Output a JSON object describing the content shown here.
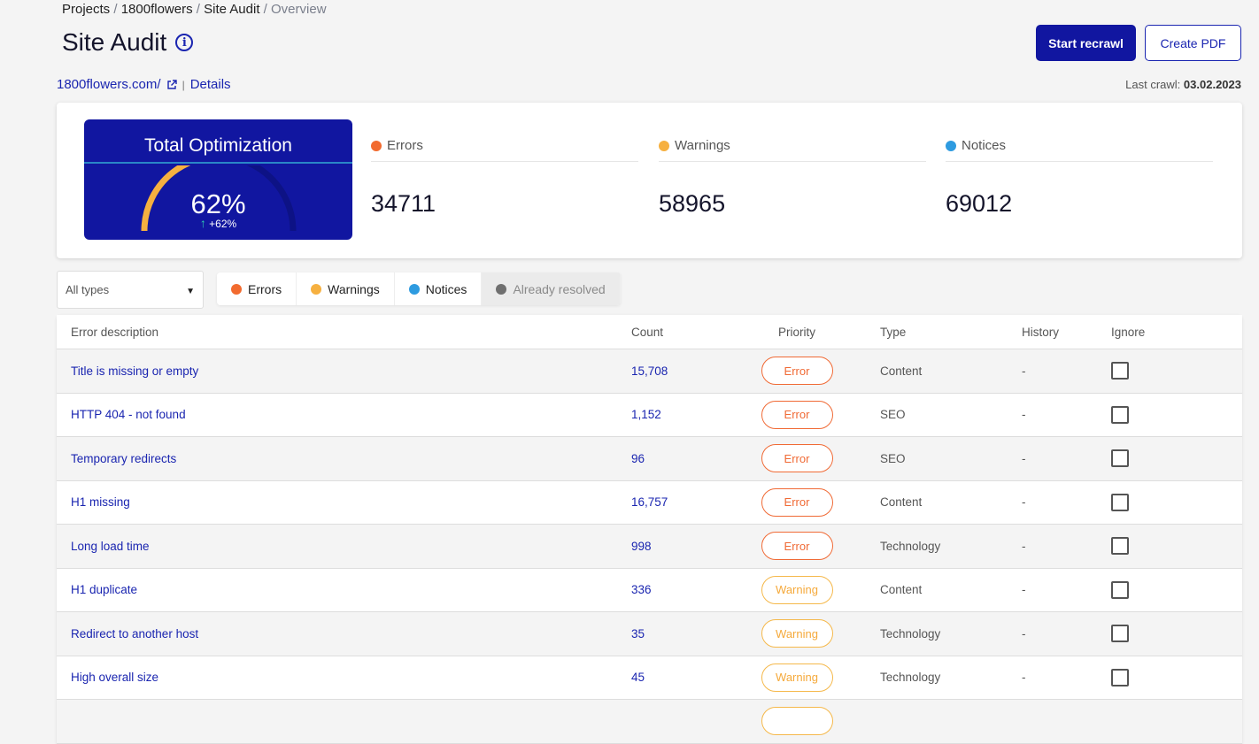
{
  "breadcrumb": [
    "Projects",
    "1800flowers",
    "Site Audit",
    "Overview"
  ],
  "title": "Site Audit",
  "site": {
    "url": "1800flowers.com/",
    "details": "Details"
  },
  "buttons": {
    "recrawl": "Start recrawl",
    "pdf": "Create PDF"
  },
  "last_crawl": {
    "label": "Last crawl:",
    "date": "03.02.2023"
  },
  "optimization": {
    "title": "Total Optimization",
    "value": "62%",
    "delta": "+62%",
    "fraction": 0.62
  },
  "stats": [
    {
      "label": "Errors",
      "value": "34711",
      "color": "#f26b2f"
    },
    {
      "label": "Warnings",
      "value": "58965",
      "color": "#f6b040"
    },
    {
      "label": "Notices",
      "value": "69012",
      "color": "#2e9be0"
    }
  ],
  "filter": {
    "select": "All types",
    "tabs": [
      {
        "label": "Errors",
        "color": "#f26b2f"
      },
      {
        "label": "Warnings",
        "color": "#f6b040"
      },
      {
        "label": "Notices",
        "color": "#2e9be0"
      },
      {
        "label": "Already resolved",
        "color": "#6f6f6f"
      }
    ]
  },
  "table": {
    "headers": [
      "Error description",
      "Count",
      "Priority",
      "Type",
      "History",
      "Ignore"
    ],
    "rows": [
      {
        "desc": "Title is missing or empty",
        "count": "15,708",
        "priority": "Error",
        "type": "Content",
        "history": "-"
      },
      {
        "desc": "HTTP 404 - not found",
        "count": "1,152",
        "priority": "Error",
        "type": "SEO",
        "history": "-"
      },
      {
        "desc": "Temporary redirects",
        "count": "96",
        "priority": "Error",
        "type": "SEO",
        "history": "-"
      },
      {
        "desc": "H1 missing",
        "count": "16,757",
        "priority": "Error",
        "type": "Content",
        "history": "-"
      },
      {
        "desc": "Long load time",
        "count": "998",
        "priority": "Error",
        "type": "Technology",
        "history": "-"
      },
      {
        "desc": "H1 duplicate",
        "count": "336",
        "priority": "Warning",
        "type": "Content",
        "history": "-"
      },
      {
        "desc": "Redirect to another host",
        "count": "35",
        "priority": "Warning",
        "type": "Technology",
        "history": "-"
      },
      {
        "desc": "High overall size",
        "count": "45",
        "priority": "Warning",
        "type": "Technology",
        "history": "-"
      }
    ]
  }
}
